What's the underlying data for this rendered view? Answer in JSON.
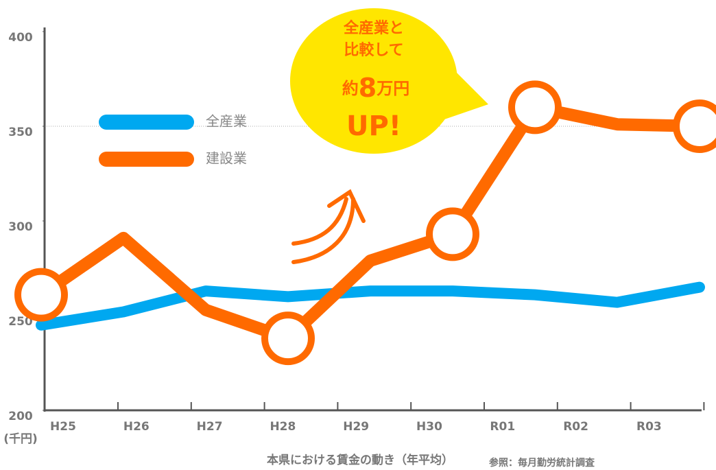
{
  "chart_data": {
    "type": "line",
    "categories": [
      "H25",
      "H26",
      "H27",
      "H28",
      "H29",
      "H30",
      "R01",
      "R02",
      "R03"
    ],
    "series": [
      {
        "name": "全産業",
        "color": "#00a8f0",
        "values": [
          245,
          252,
          263,
          260,
          263,
          263,
          261,
          257,
          265
        ]
      },
      {
        "name": "建設業",
        "color": "#ff6a00",
        "values": [
          261,
          291,
          253,
          238,
          279,
          293,
          360,
          351,
          350
        ],
        "marker_indices": [
          0,
          3,
          5,
          6,
          8
        ]
      }
    ],
    "ylim": [
      200,
      400
    ],
    "yticks": [
      200,
      250,
      300,
      350,
      400
    ],
    "reference_line": 350,
    "y_unit": "(千円)",
    "callout": {
      "lines": [
        "全産業と",
        "比較して"
      ],
      "prefix": "約",
      "number": "8",
      "suffix": "万円",
      "last": "UP!"
    },
    "caption": "本県における賃金の動き（年平均）",
    "source": "参照：毎月勤労統計調査"
  }
}
